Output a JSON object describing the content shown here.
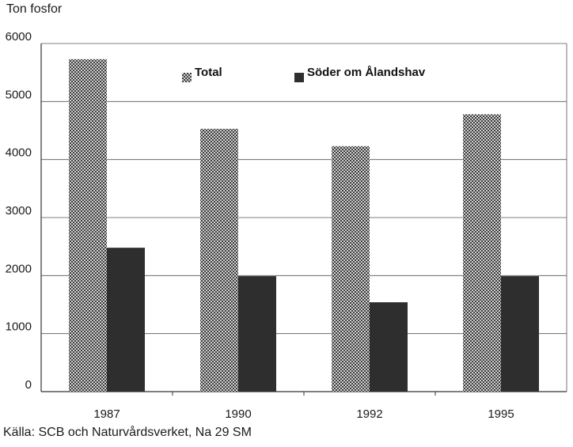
{
  "chart_data": {
    "type": "bar",
    "title": "",
    "ylabel": "Ton fosfor",
    "xlabel": "",
    "categories": [
      "1987",
      "1990",
      "1992",
      "1995"
    ],
    "series": [
      {
        "name": "Total",
        "values": [
          5730,
          4530,
          4230,
          4780
        ],
        "color": "#9a9a9a",
        "pattern": "crosshatch"
      },
      {
        "name": "Söder om Ålandshav",
        "values": [
          2480,
          1990,
          1540,
          1990
        ],
        "color": "#2e2e2e",
        "pattern": "solid"
      }
    ],
    "ylim": [
      0,
      6000
    ],
    "yticks": [
      "0",
      "1000",
      "2000",
      "3000",
      "4000",
      "5000",
      "6000"
    ],
    "grid": true,
    "legend": "top"
  },
  "source": "Källa: SCB och Naturvårdsverket, Na 29 SM"
}
